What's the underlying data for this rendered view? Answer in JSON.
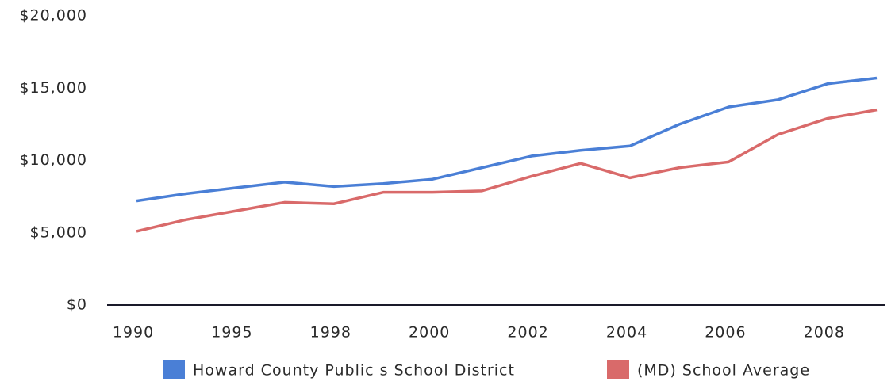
{
  "chart_data": {
    "type": "line",
    "categories": [
      "1990",
      null,
      "1995",
      null,
      "1998",
      null,
      "2000",
      null,
      "2002",
      null,
      "2004",
      null,
      "2006",
      null,
      "2008",
      null
    ],
    "series": [
      {
        "name": "Howard County Public s School District",
        "color": "#4a7fd6",
        "values": [
          7200,
          7700,
          8100,
          8500,
          8200,
          8400,
          8700,
          9500,
          10300,
          10700,
          11000,
          12500,
          13700,
          14200,
          15300,
          15700
        ]
      },
      {
        "name": "(MD) School Average",
        "color": "#d96a6a",
        "values": [
          5100,
          5900,
          6500,
          7100,
          7000,
          7800,
          7800,
          7900,
          8900,
          9800,
          8800,
          9500,
          9900,
          11800,
          12900,
          13500
        ]
      }
    ],
    "ylim": [
      0,
      20000
    ],
    "yticks": [
      {
        "value": 0,
        "label": "$0"
      },
      {
        "value": 5000,
        "label": "$5,000"
      },
      {
        "value": 10000,
        "label": "$10,000"
      },
      {
        "value": 15000,
        "label": "$15,000"
      },
      {
        "value": 20000,
        "label": "$20,000"
      }
    ],
    "grid": false,
    "legend": "bottom"
  }
}
